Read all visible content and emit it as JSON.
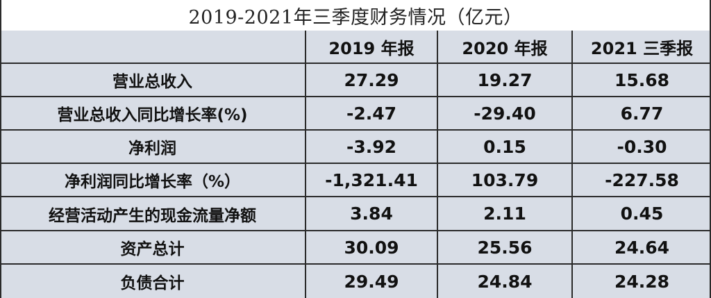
{
  "title": "2019-2021年三季度财务情况（亿元）",
  "columns": [
    "",
    "2019 年报",
    "2020 年报",
    "2021 三季报"
  ],
  "rows": [
    {
      "label": "营业总收入",
      "values": [
        "27.29",
        "19.27",
        "15.68"
      ]
    },
    {
      "label": "营业总收入同比增长率(%)",
      "values": [
        "-2.47",
        "-29.40",
        "6.77"
      ]
    },
    {
      "label": "净利润",
      "values": [
        "-3.92",
        "0.15",
        "-0.30"
      ]
    },
    {
      "label": "净利润同比增长率（%）",
      "values": [
        "-1,321.41",
        "103.79",
        "-227.58"
      ]
    },
    {
      "label": "经营活动产生的现金流量净额",
      "values": [
        "3.84",
        "2.11",
        "0.45"
      ]
    },
    {
      "label": "资产总计",
      "values": [
        "30.09",
        "25.56",
        "24.64"
      ]
    },
    {
      "label": "负债合计",
      "values": [
        "29.49",
        "24.84",
        "24.28"
      ]
    }
  ]
}
